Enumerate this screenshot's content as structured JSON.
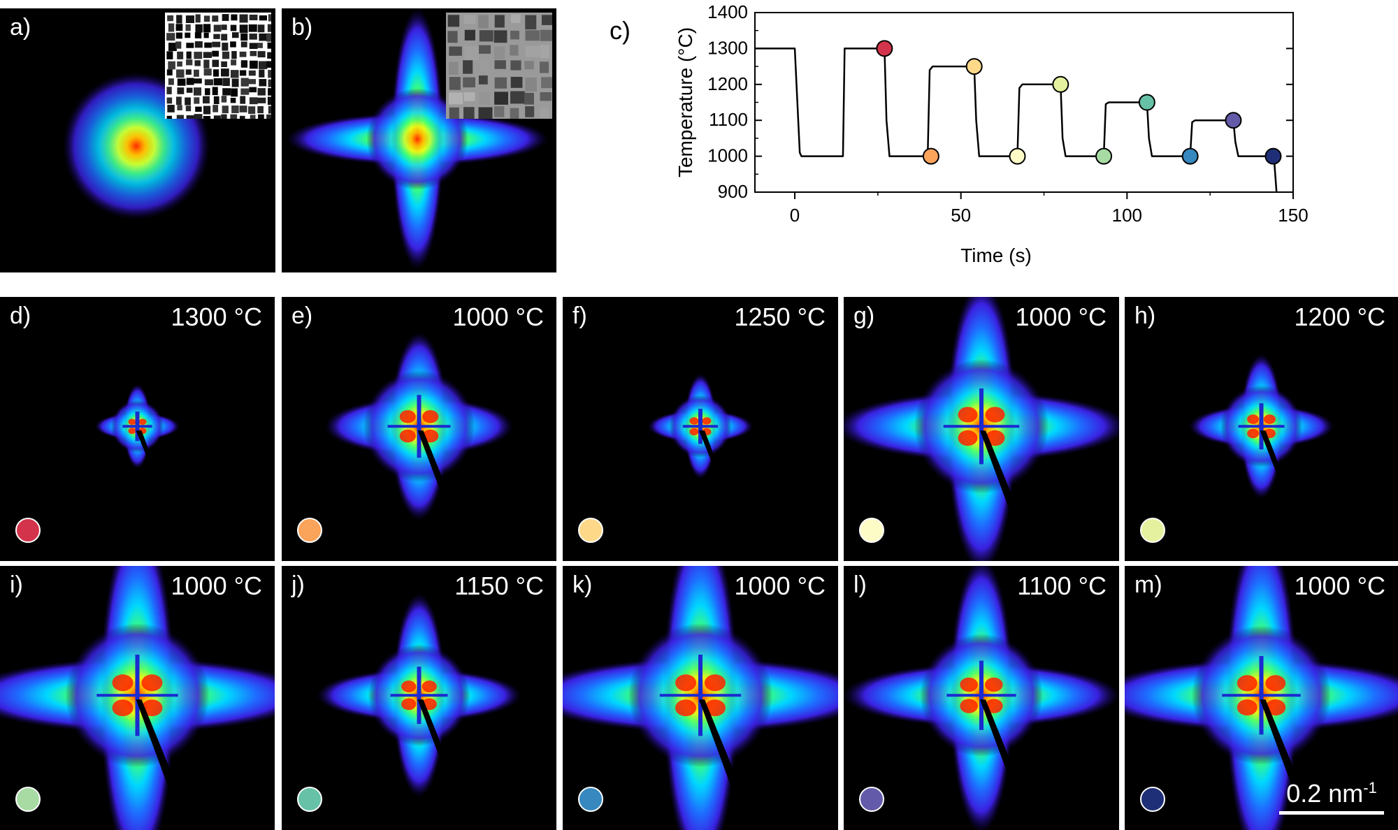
{
  "top_panels": [
    {
      "label": "a)",
      "lobe": 0.35
    },
    {
      "label": "b)",
      "lobe": 1.6
    }
  ],
  "saxs_panels": [
    {
      "label": "d)",
      "temperature": "1300 °C",
      "color": "#d4344b",
      "extent": 0.32,
      "lobe": 1.0
    },
    {
      "label": "e)",
      "temperature": "1000 °C",
      "color": "#f9a35b",
      "extent": 0.68,
      "lobe": 1.05
    },
    {
      "label": "f)",
      "temperature": "1250 °C",
      "color": "#fdd889",
      "extent": 0.38,
      "lobe": 1.05
    },
    {
      "label": "g)",
      "temperature": "1000 °C",
      "color": "#fdfcc6",
      "extent": 0.82,
      "lobe": 1.35
    },
    {
      "label": "h)",
      "temperature": "1200 °C",
      "color": "#e5f19e",
      "extent": 0.5,
      "lobe": 1.1
    },
    {
      "label": "i)",
      "temperature": "1000 °C",
      "color": "#a7dba3",
      "extent": 0.88,
      "lobe": 1.5
    },
    {
      "label": "j)",
      "temperature": "1150 °C",
      "color": "#66c1a6",
      "extent": 0.62,
      "lobe": 1.25
    },
    {
      "label": "k)",
      "temperature": "1000 °C",
      "color": "#3688be",
      "extent": 0.88,
      "lobe": 1.5
    },
    {
      "label": "l)",
      "temperature": "1100 °C",
      "color": "#635ba9",
      "extent": 0.75,
      "lobe": 1.4
    },
    {
      "label": "m)",
      "temperature": "1000 °C",
      "color": "#1f2f77",
      "extent": 0.85,
      "lobe": 1.5
    }
  ],
  "scale_bar": {
    "text": "0.2 nm",
    "sup": "-1"
  },
  "chart_data": {
    "type": "line",
    "label": "c)",
    "xlabel": "Time (s)",
    "ylabel": "Temperature (°C)",
    "xlim": [
      -12,
      150
    ],
    "ylim": [
      900,
      1400
    ],
    "xticks": [
      0,
      50,
      100,
      150
    ],
    "yticks": [
      900,
      1000,
      1100,
      1200,
      1300,
      1400
    ],
    "series": [
      {
        "x": [
          -12,
          0,
          1.5,
          2,
          14.5,
          15,
          27,
          27.6,
          28.5,
          40,
          40.6,
          41.5,
          54,
          54.6,
          55.5,
          67,
          67.6,
          68.5,
          80,
          80.6,
          81.5,
          93,
          93.6,
          94.5,
          106,
          106.6,
          107.5,
          119,
          119.6,
          120.5,
          132,
          132.6,
          133.5,
          144,
          144.2,
          145
        ],
        "y": [
          1300,
          1300,
          1010,
          1000,
          1000,
          1300,
          1300,
          1100,
          1000,
          1000,
          1240,
          1250,
          1250,
          1100,
          1000,
          1000,
          1190,
          1200,
          1200,
          1050,
          1000,
          1000,
          1145,
          1150,
          1150,
          1050,
          1000,
          1000,
          1095,
          1100,
          1100,
          1040,
          1000,
          1000,
          1000,
          900
        ]
      }
    ],
    "markers": [
      {
        "x": 27,
        "y": 1300,
        "color": "#d4344b"
      },
      {
        "x": 41,
        "y": 1000,
        "color": "#f9a35b"
      },
      {
        "x": 54,
        "y": 1250,
        "color": "#fdd889"
      },
      {
        "x": 67,
        "y": 1000,
        "color": "#fdfcc6"
      },
      {
        "x": 80,
        "y": 1200,
        "color": "#e5f19e"
      },
      {
        "x": 93,
        "y": 1000,
        "color": "#a7dba3"
      },
      {
        "x": 106,
        "y": 1150,
        "color": "#66c1a6"
      },
      {
        "x": 119,
        "y": 1000,
        "color": "#3688be"
      },
      {
        "x": 132,
        "y": 1100,
        "color": "#635ba9"
      },
      {
        "x": 144,
        "y": 1000,
        "color": "#1f2f77"
      }
    ]
  }
}
